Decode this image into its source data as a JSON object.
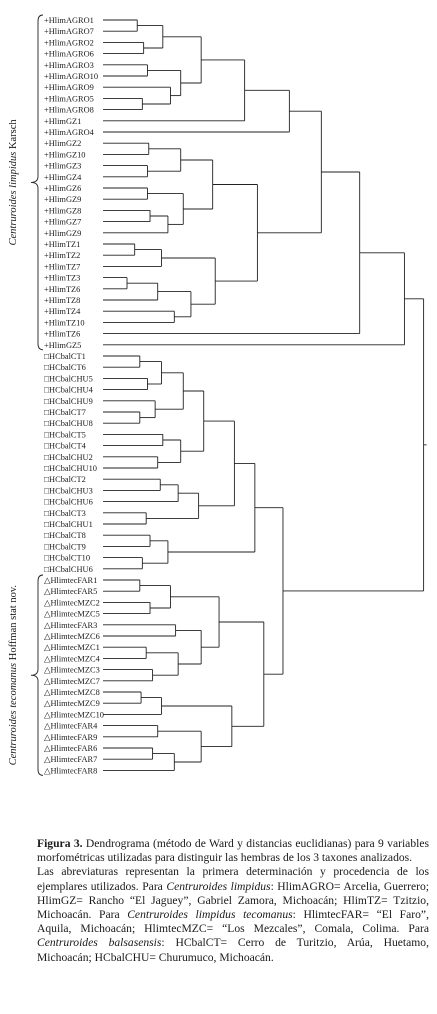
{
  "figure": {
    "group_labels": [
      {
        "italic": "Centruroides limpidus",
        "plain": " Karsch"
      },
      {
        "italic": "Centruroides tecomanus",
        "plain": " Hoffman stat nov."
      }
    ],
    "leaves": [
      {
        "label": "HlimAGRO1",
        "symbol": "+"
      },
      {
        "label": "HlimAGRO7",
        "symbol": "+"
      },
      {
        "label": "HlimAGRO2",
        "symbol": "+"
      },
      {
        "label": "HlimAGRO6",
        "symbol": "+"
      },
      {
        "label": "HlimAGRO3",
        "symbol": "+"
      },
      {
        "label": "HlimAGRO10",
        "symbol": "+"
      },
      {
        "label": "HlimAGRO9",
        "symbol": "+"
      },
      {
        "label": "HlimAGRO5",
        "symbol": "+"
      },
      {
        "label": "HlimAGRO8",
        "symbol": "+"
      },
      {
        "label": "HlimGZ1",
        "symbol": "+"
      },
      {
        "label": "HlimAGRO4",
        "symbol": "+"
      },
      {
        "label": "HlimGZ2",
        "symbol": "+"
      },
      {
        "label": "HlimGZ10",
        "symbol": "+"
      },
      {
        "label": "HlimGZ3",
        "symbol": "+"
      },
      {
        "label": "HlimGZ4",
        "symbol": "+"
      },
      {
        "label": "HlimGZ6",
        "symbol": "+"
      },
      {
        "label": "HlimGZ9",
        "symbol": "+"
      },
      {
        "label": "HlimGZ8",
        "symbol": "+"
      },
      {
        "label": "HlimGZ7",
        "symbol": "+"
      },
      {
        "label": "HlimGZ9",
        "symbol": "+"
      },
      {
        "label": "HlimTZ1",
        "symbol": "+"
      },
      {
        "label": "HlimTZ2",
        "symbol": "+"
      },
      {
        "label": "HlimTZ7",
        "symbol": "+"
      },
      {
        "label": "HlimTZ3",
        "symbol": "+"
      },
      {
        "label": "HlimTZ6",
        "symbol": "+"
      },
      {
        "label": "HlimTZ8",
        "symbol": "+"
      },
      {
        "label": "HlimTZ4",
        "symbol": "+"
      },
      {
        "label": "HlimTZ10",
        "symbol": "+"
      },
      {
        "label": "HlimTZ6",
        "symbol": "+"
      },
      {
        "label": "HlimGZ5",
        "symbol": "+"
      },
      {
        "label": "HCbalCT1",
        "symbol": "□"
      },
      {
        "label": "HCbalCT6",
        "symbol": "□"
      },
      {
        "label": "HCbalCHU5",
        "symbol": "□"
      },
      {
        "label": "HCbalCHU4",
        "symbol": "□"
      },
      {
        "label": "HCbalCHU9",
        "symbol": "□"
      },
      {
        "label": "HCbalCT7",
        "symbol": "□"
      },
      {
        "label": "HCbalCHU8",
        "symbol": "□"
      },
      {
        "label": "HCbalCT5",
        "symbol": "□"
      },
      {
        "label": "HCbalCT4",
        "symbol": "□"
      },
      {
        "label": "HCbalCHU2",
        "symbol": "□"
      },
      {
        "label": "HCbalCHU10",
        "symbol": "□"
      },
      {
        "label": "HCbalCT2",
        "symbol": "□"
      },
      {
        "label": "HCbalCHU3",
        "symbol": "□"
      },
      {
        "label": "HCbalCHU6",
        "symbol": "□"
      },
      {
        "label": "HCbalCT3",
        "symbol": "□"
      },
      {
        "label": "HCbalCHU1",
        "symbol": "□"
      },
      {
        "label": "HCbalCT8",
        "symbol": "□"
      },
      {
        "label": "HCbalCT9",
        "symbol": "□"
      },
      {
        "label": "HCbalCT10",
        "symbol": "□"
      },
      {
        "label": "HCbalCHU6",
        "symbol": "□"
      },
      {
        "label": "HlimtecFAR1",
        "symbol": "△"
      },
      {
        "label": "HlimtecFAR5",
        "symbol": "△"
      },
      {
        "label": "HlimtecMZC2",
        "symbol": "△"
      },
      {
        "label": "HlimtecMZC5",
        "symbol": "△"
      },
      {
        "label": "HlimtecFAR3",
        "symbol": "△"
      },
      {
        "label": "HlimtecMZC6",
        "symbol": "△"
      },
      {
        "label": "HlimtecMZC1",
        "symbol": "△"
      },
      {
        "label": "HlimtecMZC4",
        "symbol": "△"
      },
      {
        "label": "HlimtecMZC3",
        "symbol": "△"
      },
      {
        "label": "HlimtecMZC7",
        "symbol": "△"
      },
      {
        "label": "HlimtecMZC8",
        "symbol": "△"
      },
      {
        "label": "HlimtecMZC9",
        "symbol": "△"
      },
      {
        "label": "HlimtecMZC10",
        "symbol": "△"
      },
      {
        "label": "HlimtecFAR4",
        "symbol": "△"
      },
      {
        "label": "HlimtecFAR9",
        "symbol": "△"
      },
      {
        "label": "HlimtecFAR6",
        "symbol": "△"
      },
      {
        "label": "HlimtecFAR7",
        "symbol": "△"
      },
      {
        "label": "HlimtecFAR8",
        "symbol": "△"
      }
    ],
    "tree": [
      [
        [
          [
            [
              [
                [
                  [
                    [
                      [
                        [
                          0,
                          1
                        ],
                        [
                          2,
                          3
                        ]
                      ],
                      [
                        [
                          4,
                          5
                        ],
                        [
                          6,
                          [
                            7,
                            8
                          ]
                        ]
                      ]
                    ],
                    9
                  ],
                  10
                ],
                [
                  [
                    [
                      [
                        11,
                        12
                      ],
                      [
                        13,
                        14
                      ]
                    ],
                    [
                      [
                        15,
                        16
                      ],
                      [
                        [
                          17,
                          18
                        ],
                        19
                      ]
                    ]
                  ],
                  [
                    [
                      [
                        20,
                        21
                      ],
                      22
                    ],
                    [
                      [
                        [
                          23,
                          24
                        ],
                        25
                      ],
                      [
                        26,
                        27
                      ]
                    ]
                  ]
                ]
              ],
              28
            ],
            29
          ],
          [
            [
              [
                [
                  [
                    [
                      [
                        30,
                        31
                      ],
                      [
                        32,
                        33
                      ]
                    ],
                    [
                      34,
                      [
                        35,
                        36
                      ]
                    ]
                  ],
                  [
                    [
                      37,
                      38
                    ],
                    [
                      39,
                      40
                    ]
                  ]
                ],
                [
                  [
                    [
                      41,
                      42
                    ],
                    43
                  ],
                  [
                    44,
                    45
                  ]
                ]
              ],
              [
                [
                  46,
                  47
                ],
                [
                  48,
                  49
                ]
              ]
            ],
            [
              [
                [
                  [
                    50,
                    51
                  ],
                  [
                    52,
                    53
                  ]
                ],
                [
                  [
                    54,
                    55
                  ],
                  [
                    [
                      56,
                      57
                    ],
                    [
                      58,
                      59
                    ]
                  ]
                ]
              ],
              [
                [
                  [
                    60,
                    61
                  ],
                  62
                ],
                [
                  [
                    63,
                    64
                  ],
                  [
                    [
                      65,
                      66
                    ],
                    67
                  ]
                ]
              ]
            ]
          ]
        ]
      ],
      []
    ],
    "merge_heights": {
      "0,1": 2.6,
      "2,3": 3.1,
      "4,5": 3.4,
      "7,8": 3.0,
      "6,7": 5.2,
      "0,2": 4.6,
      "4,6": 6.0,
      "0,4": 7.6,
      "0,9": 11.0,
      "0,10": 14.5,
      "11,12": 3.5,
      "13,14": 3.4,
      "11,13": 6.0,
      "15,16": 3.4,
      "17,18": 3.6,
      "17,19": 5.0,
      "15,17": 6.2,
      "11,15": 8.5,
      "20,21": 2.4,
      "20,22": 4.5,
      "23,24": 1.8,
      "23,25": 4.2,
      "26,27": 5.5,
      "23,26": 6.8,
      "20,23": 8.7,
      "11,20": 12.0,
      "0,11": 17.0,
      "0,28": 20.0,
      "0,29": 23.5,
      "30,31": 2.8,
      "32,33": 3.4,
      "30,32": 4.5,
      "35,36": 2.8,
      "34,35": 4.0,
      "30,34": 6.2,
      "37,38": 4.6,
      "39,40": 4.2,
      "37,39": 6.0,
      "30,37": 7.8,
      "41,42": 4.4,
      "41,43": 5.8,
      "44,45": 3.3,
      "41,44": 7.4,
      "30,41": 10.2,
      "46,47": 3.6,
      "48,49": 3.0,
      "46,48": 5.0,
      "30,46": 11.8,
      "50,51": 2.8,
      "52,53": 3.6,
      "50,52": 5.2,
      "54,55": 5.6,
      "56,57": 3.3,
      "58,59": 3.8,
      "56,58": 5.8,
      "54,56": 7.6,
      "50,54": 9.0,
      "60,61": 2.9,
      "60,62": 4.5,
      "63,64": 4.2,
      "65,66": 3.8,
      "65,67": 5.5,
      "63,65": 7.6,
      "60,63": 10.0,
      "50,60": 12.5,
      "30,50": 14.0,
      "0,30": 25.0
    }
  },
  "caption": {
    "fig_label": "Figura 3.",
    "line1": " Dendrograma (método de Ward y distancias euclidianas) para 9 variables morfométricas utilizadas para distinguir las hembras de los 3 taxones analizados.",
    "p2_a": "Las abreviaturas representan la primera determinación y procedencia de los ejemplares utilizados. Para ",
    "p2_sp1": "Centruroides limpidus",
    "p2_b": ": HlimAGRO= Arcelia, Guerrero; HlimGZ= Rancho “El Jaguey”, Gabriel Zamora, Michoacán; HlimTZ= Tzitzio, Michoacán. Para ",
    "p2_sp2": "Centruroides limpidus tecomanus",
    "p2_c": ": HlimtecFAR= “El Faro”, Aquila, Michoacán; HlimtecMZC= “Los Mezcales”, Comala, Colima. Para ",
    "p2_sp3": "Centruroides balsasensis",
    "p2_d": ": HCbalCT= Cerro de Turitzio, Arúa, Huetamo, Michoacán; HCbalCHU= Churumuco, Michoacán."
  }
}
